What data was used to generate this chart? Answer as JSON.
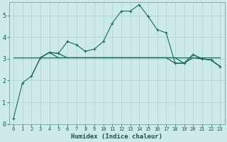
{
  "title": "",
  "xlabel": "Humidex (Indice chaleur)",
  "bg_color": "#cdeaea",
  "grid_color": "#b0d0d0",
  "line_color": "#1a6b5a",
  "xlim": [
    -0.5,
    23.5
  ],
  "ylim": [
    0,
    5.6
  ],
  "xticks": [
    0,
    1,
    2,
    3,
    4,
    5,
    6,
    7,
    8,
    9,
    10,
    11,
    12,
    13,
    14,
    15,
    16,
    17,
    18,
    19,
    20,
    21,
    22,
    23
  ],
  "yticks": [
    0,
    1,
    2,
    3,
    4,
    5
  ],
  "curve1_x": [
    0,
    1,
    2,
    3,
    4,
    5,
    6,
    7,
    8,
    9,
    10,
    11,
    12,
    13,
    14,
    15,
    16,
    17,
    18,
    19,
    20,
    21,
    22,
    23
  ],
  "curve1_y": [
    0.25,
    1.9,
    2.2,
    3.05,
    3.3,
    3.25,
    3.8,
    3.65,
    3.35,
    3.45,
    3.8,
    4.65,
    5.2,
    5.2,
    5.5,
    4.95,
    4.35,
    4.2,
    2.8,
    2.8,
    3.2,
    3.0,
    2.95,
    2.65
  ],
  "curve2_x": [
    0,
    23
  ],
  "curve2_y": [
    3.05,
    3.05
  ],
  "curve3_x": [
    2,
    3,
    4,
    5,
    6,
    7,
    8,
    9,
    10,
    11,
    12,
    13,
    14,
    15,
    16,
    17,
    18,
    19,
    20,
    21,
    22,
    23
  ],
  "curve3_y": [
    2.2,
    3.05,
    3.3,
    3.25,
    3.05,
    3.05,
    3.05,
    3.05,
    3.05,
    3.05,
    3.05,
    3.05,
    3.05,
    3.05,
    3.05,
    3.05,
    2.8,
    2.8,
    3.05,
    3.0,
    2.95,
    2.65
  ],
  "curve4_x": [
    3,
    4,
    5,
    6,
    7,
    8,
    9,
    10,
    11,
    12,
    13,
    14,
    15,
    16,
    17,
    18,
    19,
    20,
    21,
    22,
    23
  ],
  "curve4_y": [
    3.05,
    3.3,
    3.05,
    3.05,
    3.05,
    3.05,
    3.05,
    3.05,
    3.05,
    3.05,
    3.05,
    3.05,
    3.05,
    3.05,
    3.05,
    3.05,
    2.8,
    3.2,
    3.0,
    2.95,
    2.65
  ]
}
